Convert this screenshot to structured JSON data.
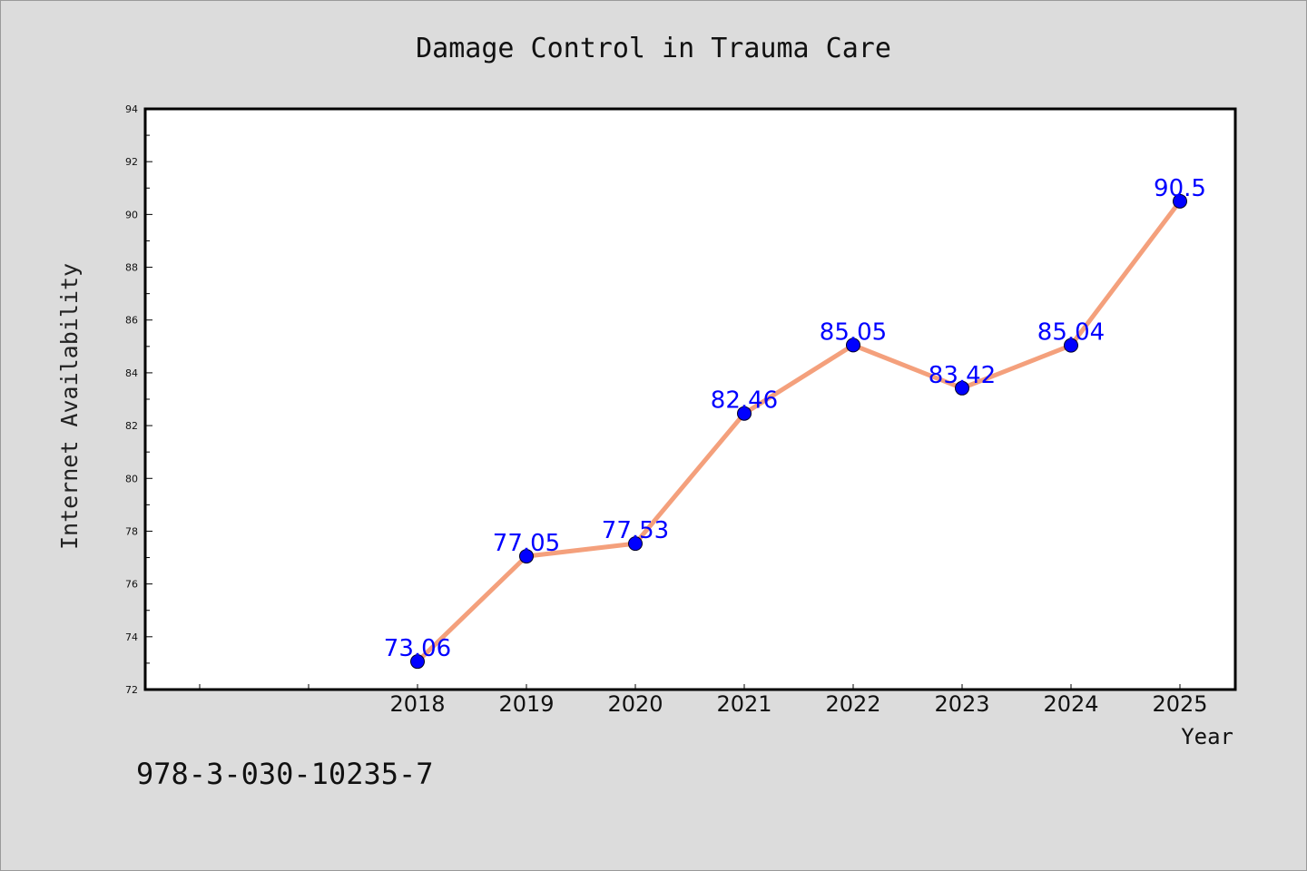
{
  "chart_data": {
    "type": "line",
    "title": "Damage Control in Trauma Care",
    "xlabel": "Year",
    "ylabel": "Internet Availability",
    "categories": [
      "2018",
      "2019",
      "2020",
      "2021",
      "2022",
      "2023",
      "2024",
      "2025"
    ],
    "values": [
      73.06,
      77.05,
      77.53,
      82.46,
      85.05,
      83.42,
      85.04,
      90.5
    ],
    "data_labels": [
      "73.06",
      "77.05",
      "77.53",
      "82.46",
      "85.05",
      "83.42",
      "85.04",
      "90.5"
    ],
    "ylim": [
      72,
      94
    ],
    "yticks": [
      72,
      74,
      76,
      78,
      80,
      82,
      84,
      86,
      88,
      90,
      92,
      94
    ],
    "grid": false,
    "colors": {
      "line": "#f4a07c",
      "marker": "#0000ff",
      "data_label": "#0000ff",
      "background": "#dcdcdc",
      "plot_background": "#ffffff"
    }
  },
  "annotation": "978-3-030-10235-7"
}
